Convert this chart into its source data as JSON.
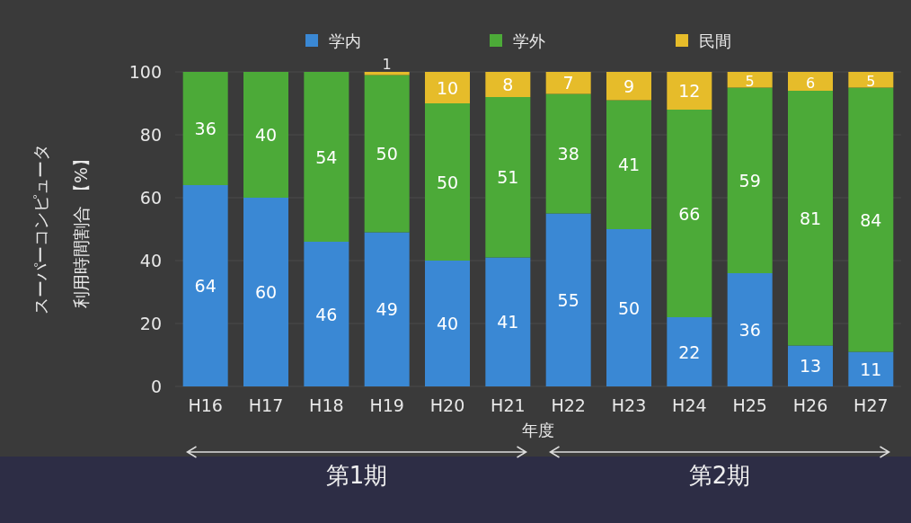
{
  "chart_data": {
    "type": "bar",
    "stacked": true,
    "ylabel": "スーパーコンピュータ利用時間割合 【%】",
    "xlabel": "年度",
    "categories": [
      "H16",
      "H17",
      "H18",
      "H19",
      "H20",
      "H21",
      "H22",
      "H23",
      "H24",
      "H25",
      "H26",
      "H27"
    ],
    "series": [
      {
        "name": "学内",
        "color": "#3a88d4",
        "values": [
          64,
          60,
          46,
          49,
          40,
          41,
          55,
          50,
          22,
          36,
          13,
          11
        ]
      },
      {
        "name": "学外",
        "color": "#4caa38",
        "values": [
          36,
          40,
          54,
          50,
          50,
          51,
          38,
          41,
          66,
          59,
          81,
          84
        ]
      },
      {
        "name": "民間",
        "color": "#e6bc2a",
        "values": [
          null,
          null,
          null,
          1,
          10,
          8,
          7,
          9,
          12,
          5,
          6,
          5
        ]
      }
    ],
    "ylim": [
      0,
      100
    ],
    "yticks": [
      0,
      20,
      40,
      60,
      80,
      100
    ],
    "grid": "y",
    "legend": "top",
    "data_labels": true,
    "annotations": [
      "第1期",
      "第2期"
    ]
  }
}
